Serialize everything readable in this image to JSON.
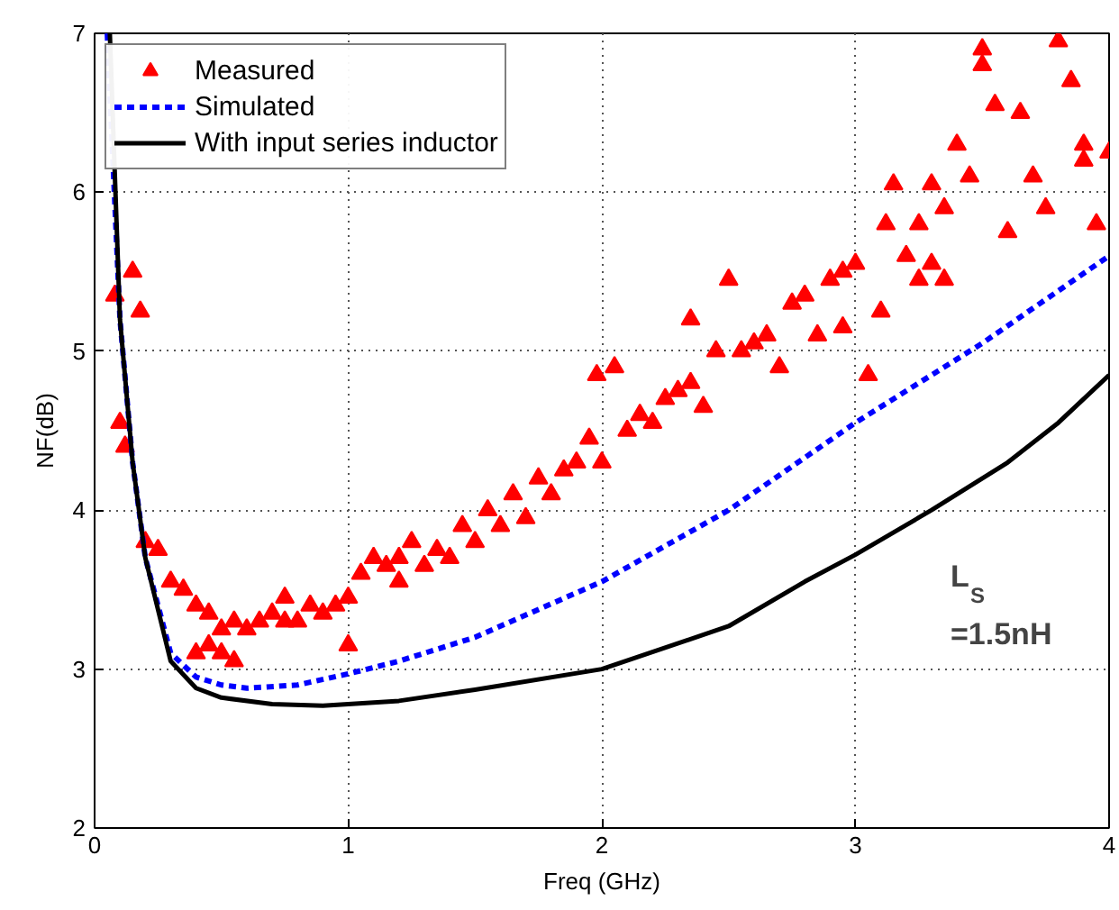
{
  "chart_data": {
    "type": "scatter",
    "xlabel": "Freq (GHz)",
    "ylabel": "NF(dB)",
    "xlim": [
      0,
      4
    ],
    "ylim": [
      2,
      7
    ],
    "xticks": [
      0,
      1,
      2,
      3,
      4
    ],
    "yticks": [
      2,
      3,
      4,
      5,
      6,
      7
    ],
    "grid": true,
    "legend": "top left",
    "annotations": [
      "L$_{S}$\n=1.5nH"
    ],
    "series": [
      {
        "name": "Measured",
        "marker": "triangle",
        "color": "#ff0000",
        "x": [
          0.08,
          0.1,
          0.12,
          0.15,
          0.18,
          0.2,
          0.25,
          0.3,
          0.35,
          0.4,
          0.45,
          0.5,
          0.55,
          0.4,
          0.45,
          0.5,
          0.55,
          0.6,
          0.65,
          0.7,
          0.75,
          0.8,
          0.85,
          0.9,
          0.95,
          1.0,
          1.0,
          1.05,
          1.1,
          1.15,
          1.2,
          1.25,
          1.3,
          1.35,
          1.4,
          1.45,
          1.5,
          1.55,
          1.6,
          1.65,
          1.7,
          1.75,
          1.8,
          1.85,
          1.9,
          1.95,
          1.98,
          2.0,
          2.05,
          2.1,
          2.15,
          2.2,
          2.25,
          2.3,
          2.35,
          2.4,
          2.45,
          2.5,
          2.55,
          2.6,
          2.65,
          2.7,
          2.75,
          2.8,
          2.85,
          2.9,
          2.95,
          3.0,
          3.05,
          3.1,
          3.12,
          3.15,
          3.2,
          3.25,
          3.3,
          3.35,
          3.4,
          3.45,
          3.5,
          3.55,
          3.6,
          3.65,
          3.7,
          3.75,
          3.8,
          3.85,
          3.9,
          3.95,
          4.0,
          3.9,
          3.5,
          3.35,
          3.25,
          3.3,
          2.95,
          2.35,
          1.2,
          0.75
        ],
        "values": [
          5.35,
          4.55,
          4.4,
          5.5,
          5.25,
          3.8,
          3.75,
          3.55,
          3.5,
          3.1,
          3.15,
          3.1,
          3.05,
          3.4,
          3.35,
          3.25,
          3.3,
          3.25,
          3.3,
          3.35,
          3.45,
          3.3,
          3.4,
          3.35,
          3.4,
          3.45,
          3.15,
          3.6,
          3.7,
          3.65,
          3.7,
          3.8,
          3.65,
          3.75,
          3.7,
          3.9,
          3.8,
          4.0,
          3.9,
          4.1,
          3.95,
          4.2,
          4.1,
          4.25,
          4.3,
          4.45,
          4.85,
          4.3,
          4.9,
          4.5,
          4.6,
          4.55,
          4.7,
          4.75,
          4.8,
          4.65,
          5.0,
          5.45,
          5.0,
          5.05,
          5.1,
          4.9,
          5.3,
          5.35,
          5.1,
          5.45,
          5.5,
          5.55,
          4.85,
          5.25,
          5.8,
          6.05,
          5.6,
          5.8,
          5.55,
          5.9,
          6.3,
          6.1,
          6.9,
          6.55,
          5.75,
          6.5,
          6.1,
          5.9,
          6.95,
          6.7,
          6.3,
          5.8,
          6.25,
          6.2,
          6.8,
          5.45,
          5.45,
          6.05,
          5.15,
          5.2,
          3.55,
          3.3
        ]
      },
      {
        "name": "Simulated",
        "type": "line",
        "line_style": "dashed",
        "color": "#0000ff",
        "x": [
          0.05,
          0.1,
          0.15,
          0.2,
          0.3,
          0.4,
          0.5,
          0.6,
          0.8,
          1.0,
          1.2,
          1.5,
          2.0,
          2.5,
          3.0,
          3.5,
          4.0
        ],
        "values": [
          7.0,
          5.2,
          4.3,
          3.7,
          3.1,
          2.95,
          2.9,
          2.88,
          2.9,
          2.97,
          3.05,
          3.2,
          3.55,
          4.0,
          4.55,
          5.05,
          5.6
        ]
      },
      {
        "name": "With input series inductor",
        "type": "line",
        "line_style": "solid",
        "color": "#000000",
        "x": [
          0.06,
          0.1,
          0.15,
          0.2,
          0.3,
          0.4,
          0.5,
          0.7,
          0.9,
          1.2,
          1.5,
          2.0,
          2.5,
          2.8,
          3.0,
          3.3,
          3.6,
          3.8,
          4.0
        ],
        "values": [
          7.0,
          5.2,
          4.3,
          3.7,
          3.05,
          2.88,
          2.82,
          2.78,
          2.77,
          2.8,
          2.87,
          3.0,
          3.27,
          3.55,
          3.72,
          4.0,
          4.3,
          4.55,
          4.85
        ]
      }
    ]
  }
}
